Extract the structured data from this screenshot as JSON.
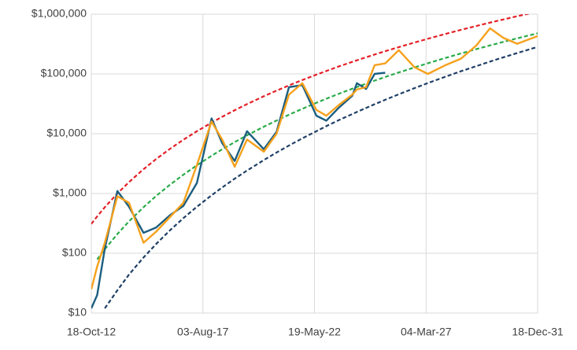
{
  "chart_data": {
    "type": "line",
    "log_scale": true,
    "grid": true,
    "x": [
      "2012-10-18",
      "2013-01-18",
      "2013-05-18",
      "2013-12-01",
      "2014-06-01",
      "2015-01-15",
      "2015-08-01",
      "2016-03-01",
      "2016-10-01",
      "2017-05-01",
      "2017-12-17",
      "2018-06-01",
      "2018-12-15",
      "2019-06-26",
      "2020-03-15",
      "2020-10-01",
      "2021-04-14",
      "2021-11-10",
      "2022-06-18",
      "2022-11-21",
      "2023-06-01",
      "2024-01-01",
      "2024-03-14",
      "2024-08-05",
      "2024-12-17",
      "2025-06-01",
      "2026-01-01",
      "2026-09-01",
      "2027-04-01",
      "2028-01-01",
      "2028-09-01",
      "2029-05-01",
      "2029-12-01",
      "2030-07-01",
      "2031-02-01",
      "2031-12-18"
    ],
    "xlim": [
      "2012-10-18",
      "2031-12-18"
    ],
    "xticks": [
      {
        "value": "2012-10-18",
        "label": "18-Oct-12"
      },
      {
        "value": "2017-08-03",
        "label": "03-Aug-17"
      },
      {
        "value": "2022-05-19",
        "label": "19-May-22"
      },
      {
        "value": "2027-03-04",
        "label": "04-Mar-27"
      },
      {
        "value": "2031-12-18",
        "label": "18-Dec-31"
      }
    ],
    "ylim": [
      10,
      1000000
    ],
    "yticks": [
      {
        "value": 10,
        "label": "$10"
      },
      {
        "value": 100,
        "label": "$100"
      },
      {
        "value": 1000,
        "label": "$1,000"
      },
      {
        "value": 10000,
        "label": "$10,000"
      },
      {
        "value": 100000,
        "label": "$100,000"
      },
      {
        "value": 1000000,
        "label": "$1,000,000"
      }
    ],
    "series": [
      {
        "color": "#e41f26",
        "dashed": true,
        "values": [
          309,
          414,
          590,
          1000,
          1550,
          2550,
          3770,
          5540,
          7930,
          11000,
          15300,
          19200,
          24700,
          31300,
          42300,
          52500,
          64300,
          79100,
          97300,
          112000,
          133000,
          159000,
          169000,
          190000,
          211000,
          240000,
          281000,
          335000,
          388000,
          466000,
          546000,
          634000,
          722000,
          817000,
          923000,
          1100000
        ]
      },
      {
        "color": "#2bab4a",
        "dashed": true,
        "values": [
          null,
          79,
          117,
          210,
          342,
          590,
          910,
          1390,
          2060,
          2970,
          4270,
          5480,
          7240,
          9390,
          13100,
          16600,
          20800,
          26100,
          32900,
          38500,
          46400,
          56600,
          60400,
          68700,
          77300,
          88900,
          106000,
          128000,
          151000,
          185000,
          220000,
          260000,
          300000,
          344000,
          394000,
          479000
        ]
      },
      {
        "color": "#1f3f66",
        "dashed": true,
        "values": [
          null,
          null,
          12,
          24,
          44,
          85,
          143,
          240,
          387,
          600,
          933,
          1260,
          1770,
          2420,
          3620,
          4840,
          6340,
          8370,
          11000,
          13400,
          16800,
          21300,
          23100,
          27000,
          31100,
          36900,
          45700,
          57700,
          70300,
          89800,
          111000,
          135000,
          161000,
          190000,
          224000,
          283000
        ]
      },
      {
        "color": "#1b5e80",
        "dashed": false,
        "values": [
          12,
          20,
          120,
          1100,
          600,
          220,
          270,
          430,
          620,
          1500,
          18000,
          7000,
          3500,
          11000,
          5500,
          10700,
          60000,
          65000,
          20000,
          16500,
          27000,
          43000,
          70000,
          56000,
          100000,
          105000,
          null,
          null,
          null,
          null,
          null,
          null,
          null,
          null,
          null,
          null
        ]
      },
      {
        "color": "#f5a11c",
        "dashed": false,
        "values": [
          25,
          60,
          150,
          900,
          700,
          150,
          230,
          400,
          700,
          3000,
          16000,
          8000,
          2800,
          8000,
          5000,
          10000,
          45000,
          70000,
          25000,
          20000,
          30000,
          45000,
          55000,
          60000,
          140000,
          150000,
          250000,
          130000,
          100000,
          140000,
          180000,
          300000,
          580000,
          400000,
          320000,
          430000
        ]
      }
    ]
  }
}
